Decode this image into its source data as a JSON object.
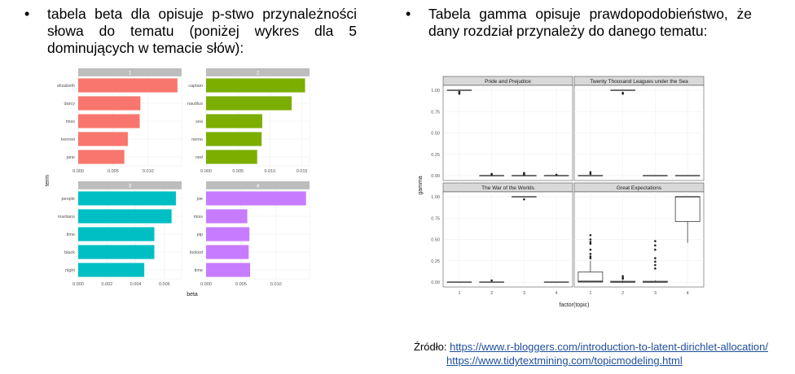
{
  "left": {
    "bullet": "•",
    "text": "tabela beta dla opisuje p-stwo przynależności słowa do tematu (poniżej wykres dla 5 dominujących w temacie słów):"
  },
  "right": {
    "bullet": "•",
    "text": "Tabela gamma opisuje prawdopodobieństwo, że dany rozdział przynależy do danego tematu:"
  },
  "source": {
    "label": "Źródło:",
    "link1": "https://www.r-bloggers.com/introduction-to-latent-dirichlet-allocation/",
    "link2": "https://www.tidytextmining.com/topicmodeling.html"
  },
  "chart_data": [
    {
      "type": "bar",
      "orientation": "horizontal",
      "xlabel": "beta",
      "ylabel": "term",
      "panels": [
        {
          "title": "1",
          "color": "#f8766d",
          "terms": [
            "elizabeth",
            "darcy",
            "miss",
            "bennet",
            "jane"
          ],
          "values": [
            0.0142,
            0.0089,
            0.0088,
            0.0071,
            0.0066
          ],
          "ticks": [
            "0.000",
            "0.005",
            "0.010"
          ],
          "xmax": 0.0148,
          "tick_values": [
            0,
            0.005,
            0.01
          ]
        },
        {
          "title": "2",
          "color": "#7cae00",
          "terms": [
            "captain",
            "nautilus",
            "sea",
            "nemo",
            "ned"
          ],
          "values": [
            0.0155,
            0.0134,
            0.0088,
            0.0087,
            0.008
          ],
          "ticks": [
            "0.000",
            "0.005",
            "0.010",
            "0.015"
          ],
          "xmax": 0.0162,
          "tick_values": [
            0,
            0.005,
            0.01,
            0.015
          ]
        },
        {
          "title": "3",
          "color": "#00bfc4",
          "terms": [
            "people",
            "martians",
            "time",
            "black",
            "night"
          ],
          "values": [
            0.0068,
            0.0065,
            0.0053,
            0.0053,
            0.0046
          ],
          "ticks": [
            "0.000",
            "0.002",
            "0.004",
            "0.006"
          ],
          "xmax": 0.0072,
          "tick_values": [
            0,
            0.002,
            0.004,
            0.006
          ]
        },
        {
          "title": "4",
          "color": "#c77cff",
          "terms": [
            "joe",
            "miss",
            "pip",
            "looked",
            "time"
          ],
          "values": [
            0.0143,
            0.0059,
            0.0062,
            0.0061,
            0.0063
          ],
          "ticks": [
            "0.000",
            "0.005",
            "0.010"
          ],
          "xmax": 0.0148,
          "tick_values": [
            0,
            0.005,
            0.01
          ]
        }
      ]
    },
    {
      "type": "boxplot",
      "xlabel": "factor(topic)",
      "ylabel": "gamma",
      "categories": [
        "1",
        "2",
        "3",
        "4"
      ],
      "yticks": [
        "0.00",
        "0.25",
        "0.50",
        "0.75",
        "1.00"
      ],
      "ylim": [
        0,
        1
      ],
      "panels": [
        {
          "title": "Pride and Prejudice",
          "boxes": [
            {
              "q1": 1,
              "med": 1,
              "q3": 1,
              "lo": 1,
              "hi": 1,
              "outliers": [
                0.97,
                0.98,
                0.96
              ]
            },
            {
              "q1": 0,
              "med": 0,
              "q3": 0,
              "lo": 0,
              "hi": 0,
              "outliers": [
                0.02,
                0.01
              ]
            },
            {
              "q1": 0,
              "med": 0,
              "q3": 0,
              "lo": 0,
              "hi": 0,
              "outliers": [
                0.02,
                0.03,
                0.01
              ]
            },
            {
              "q1": 0,
              "med": 0,
              "q3": 0,
              "lo": 0,
              "hi": 0,
              "outliers": [
                0.01
              ]
            }
          ]
        },
        {
          "title": "Twenty Thousand Leagues under the Sea",
          "boxes": [
            {
              "q1": 0,
              "med": 0,
              "q3": 0,
              "lo": 0,
              "hi": 0,
              "outliers": [
                0.04,
                0.02
              ]
            },
            {
              "q1": 1,
              "med": 1,
              "q3": 1,
              "lo": 1,
              "hi": 1,
              "outliers": [
                0.97,
                0.96
              ]
            },
            {
              "q1": 0,
              "med": 0,
              "q3": 0,
              "lo": 0,
              "hi": 0,
              "outliers": []
            },
            {
              "q1": 0,
              "med": 0,
              "q3": 0,
              "lo": 0,
              "hi": 0,
              "outliers": []
            }
          ]
        },
        {
          "title": "The War of the Worlds",
          "boxes": [
            {
              "q1": 0,
              "med": 0,
              "q3": 0,
              "lo": 0,
              "hi": 0,
              "outliers": []
            },
            {
              "q1": 0,
              "med": 0,
              "q3": 0,
              "lo": 0,
              "hi": 0,
              "outliers": [
                0.02
              ]
            },
            {
              "q1": 1,
              "med": 1,
              "q3": 1,
              "lo": 1,
              "hi": 1,
              "outliers": [
                0.97
              ]
            },
            {
              "q1": 0,
              "med": 0,
              "q3": 0,
              "lo": 0,
              "hi": 0,
              "outliers": []
            }
          ]
        },
        {
          "title": "Great Expectations",
          "boxes": [
            {
              "q1": 0,
              "med": 0.01,
              "q3": 0.12,
              "lo": 0,
              "hi": 0.25,
              "outliers": [
                0.55,
                0.5,
                0.47,
                0.45,
                0.38,
                0.33,
                0.3,
                0.28
              ]
            },
            {
              "q1": 0,
              "med": 0,
              "q3": 0.01,
              "lo": 0,
              "hi": 0.02,
              "outliers": [
                0.07,
                0.05,
                0.04
              ]
            },
            {
              "q1": 0,
              "med": 0,
              "q3": 0.01,
              "lo": 0,
              "hi": 0.02,
              "outliers": [
                0.48,
                0.43,
                0.38,
                0.28,
                0.24,
                0.2,
                0.16
              ]
            },
            {
              "q1": 0.71,
              "med": 1,
              "q3": 1,
              "lo": 0.46,
              "hi": 1,
              "outliers": []
            }
          ]
        }
      ]
    }
  ]
}
